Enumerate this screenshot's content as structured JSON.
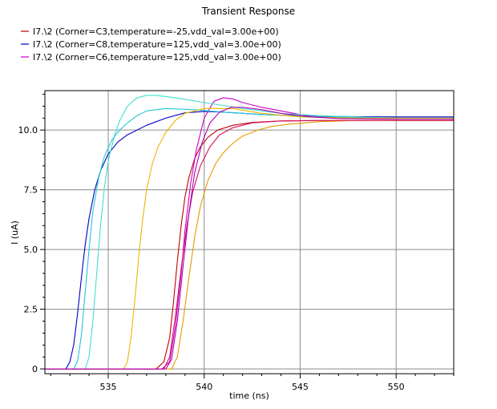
{
  "chart_data": {
    "type": "line",
    "title": "Transient Response",
    "xlabel": "time (ns)",
    "ylabel": "I (uA)",
    "xlim": [
      531.7,
      553.0
    ],
    "ylim": [
      -0.2,
      11.65
    ],
    "grid": true,
    "legend_position": "top-left",
    "x_ticks": [
      535,
      540,
      545,
      550
    ],
    "x_tick_labels": [
      "535",
      "540",
      "545",
      "550"
    ],
    "y_ticks": [
      0,
      2.5,
      5.0,
      7.5,
      10.0
    ],
    "y_tick_labels": [
      "0",
      "2.5",
      "5.0",
      "7.5",
      "10.0"
    ],
    "legend": [
      {
        "label": "I7.\\2  (Corner=C3,temperature=-25,vdd_val=3.00e+00)",
        "color": "#c00000"
      },
      {
        "label": "I7.\\2  (Corner=C8,temperature=125,vdd_val=3.00e+00)",
        "color": "#0000c8"
      },
      {
        "label": "I7.\\2  (Corner=C6,temperature=125,vdd_val=3.00e+00)",
        "color": "#c800c8"
      }
    ],
    "series": [
      {
        "name": "I7.\\2  (Corner=C3,temperature=-25,vdd_val=3.00e+00)",
        "color": "#c00000",
        "x": [
          531.7,
          537.5,
          537.9,
          538.2,
          538.4,
          538.6,
          538.8,
          539.0,
          539.2,
          539.5,
          539.8,
          540.2,
          540.7,
          541.5,
          542.5,
          544.0,
          546.0,
          550.0,
          553.0
        ],
        "y": [
          0,
          0,
          0.3,
          1.3,
          2.8,
          4.5,
          6.0,
          7.2,
          8.0,
          8.8,
          9.3,
          9.7,
          10.0,
          10.2,
          10.32,
          10.38,
          10.4,
          10.4,
          10.4
        ]
      },
      {
        "name": "I7.\\2  (Corner=C8,temperature=125,vdd_val=3.00e+00)",
        "color": "#0000c8",
        "x": [
          531.7,
          532.8,
          533.0,
          533.2,
          533.4,
          533.6,
          533.8,
          534.0,
          534.3,
          534.6,
          535.0,
          535.5,
          536.0,
          537.0,
          538.0,
          539.0,
          540.0,
          541.0,
          543.0,
          546.0,
          550.0,
          553.0
        ],
        "y": [
          0,
          0,
          0.3,
          1.0,
          2.3,
          3.8,
          5.2,
          6.3,
          7.5,
          8.3,
          9.0,
          9.5,
          9.8,
          10.2,
          10.5,
          10.72,
          10.78,
          10.75,
          10.65,
          10.57,
          10.55,
          10.55
        ]
      },
      {
        "name": "I7.\\2  (Corner=C6,temperature=125,vdd_val=3.00e+00)",
        "color": "#c800c8",
        "x": [
          531.7,
          537.8,
          538.2,
          538.5,
          538.8,
          539.0,
          539.3,
          539.6,
          540.0,
          540.5,
          541.0,
          541.5,
          542.0,
          543.0,
          544.0,
          545.0,
          546.0,
          548.0,
          550.0,
          553.0
        ],
        "y": [
          0,
          0,
          0.3,
          1.8,
          4.0,
          5.8,
          7.8,
          9.2,
          10.5,
          11.2,
          11.35,
          11.3,
          11.15,
          10.95,
          10.8,
          10.65,
          10.55,
          10.5,
          10.5,
          10.5
        ]
      },
      {
        "name": "",
        "color": "#40e0d0",
        "x": [
          531.7,
          533.8,
          534.0,
          534.2,
          534.4,
          534.6,
          534.8,
          535.0,
          535.3,
          535.6,
          536.0,
          536.5,
          537.0,
          537.5,
          538.5,
          540.0,
          542.0,
          544.0,
          546.0,
          550.0,
          553.0
        ],
        "y": [
          0,
          0,
          0.5,
          2.0,
          4.0,
          6.0,
          7.6,
          8.7,
          9.7,
          10.4,
          11.0,
          11.35,
          11.45,
          11.45,
          11.35,
          11.15,
          10.9,
          10.7,
          10.6,
          10.5,
          10.5
        ]
      },
      {
        "name": "",
        "color": "#20c8d8",
        "x": [
          531.7,
          533.2,
          533.4,
          533.6,
          533.8,
          534.0,
          534.2,
          534.5,
          534.8,
          535.2,
          535.6,
          536.0,
          536.5,
          537.0,
          538.0,
          539.5,
          541.0,
          543.0,
          546.0,
          550.0,
          553.0
        ],
        "y": [
          0,
          0,
          0.3,
          1.4,
          3.2,
          5.0,
          6.6,
          8.0,
          8.9,
          9.6,
          10.0,
          10.3,
          10.6,
          10.8,
          10.9,
          10.85,
          10.75,
          10.65,
          10.55,
          10.5,
          10.5
        ]
      },
      {
        "name": "",
        "color": "#f0b400",
        "x": [
          531.7,
          535.8,
          536.0,
          536.2,
          536.4,
          536.6,
          536.8,
          537.0,
          537.3,
          537.6,
          538.0,
          538.5,
          539.0,
          540.0,
          541.5,
          543.0,
          545.0,
          548.0,
          550.0,
          553.0
        ],
        "y": [
          0,
          0,
          0.3,
          1.4,
          3.0,
          4.8,
          6.3,
          7.5,
          8.6,
          9.3,
          9.9,
          10.4,
          10.7,
          10.9,
          10.9,
          10.7,
          10.55,
          10.5,
          10.5,
          10.5
        ]
      },
      {
        "name": "",
        "color": "#e89b00",
        "x": [
          531.7,
          538.3,
          538.6,
          538.9,
          539.2,
          539.5,
          539.8,
          540.2,
          540.6,
          541.0,
          541.5,
          542.0,
          542.8,
          543.5,
          544.5,
          546.0,
          548.0,
          550.0,
          553.0
        ],
        "y": [
          0,
          0,
          0.5,
          2.0,
          3.8,
          5.5,
          6.8,
          7.9,
          8.6,
          9.05,
          9.45,
          9.75,
          10.0,
          10.15,
          10.25,
          10.35,
          10.4,
          10.4,
          10.4
        ]
      },
      {
        "name": "",
        "color": "#d81060",
        "x": [
          531.7,
          537.9,
          538.2,
          538.5,
          538.8,
          539.1,
          539.4,
          539.8,
          540.3,
          540.8,
          541.5,
          542.5,
          544.0,
          546.0,
          550.0,
          553.0
        ],
        "y": [
          0,
          0,
          0.5,
          2.2,
          4.2,
          6.0,
          7.4,
          8.5,
          9.3,
          9.8,
          10.1,
          10.3,
          10.38,
          10.4,
          10.4,
          10.4
        ]
      },
      {
        "name": "",
        "color": "#b000b0",
        "x": [
          531.7,
          538.0,
          538.3,
          538.6,
          538.9,
          539.2,
          539.5,
          539.9,
          540.3,
          540.8,
          541.4,
          542.0,
          543.0,
          544.0,
          545.5,
          547.0,
          550.0,
          553.0
        ],
        "y": [
          0,
          0,
          0.4,
          2.0,
          4.3,
          6.5,
          8.2,
          9.5,
          10.3,
          10.75,
          10.95,
          10.95,
          10.85,
          10.7,
          10.55,
          10.48,
          10.45,
          10.45
        ]
      }
    ]
  }
}
